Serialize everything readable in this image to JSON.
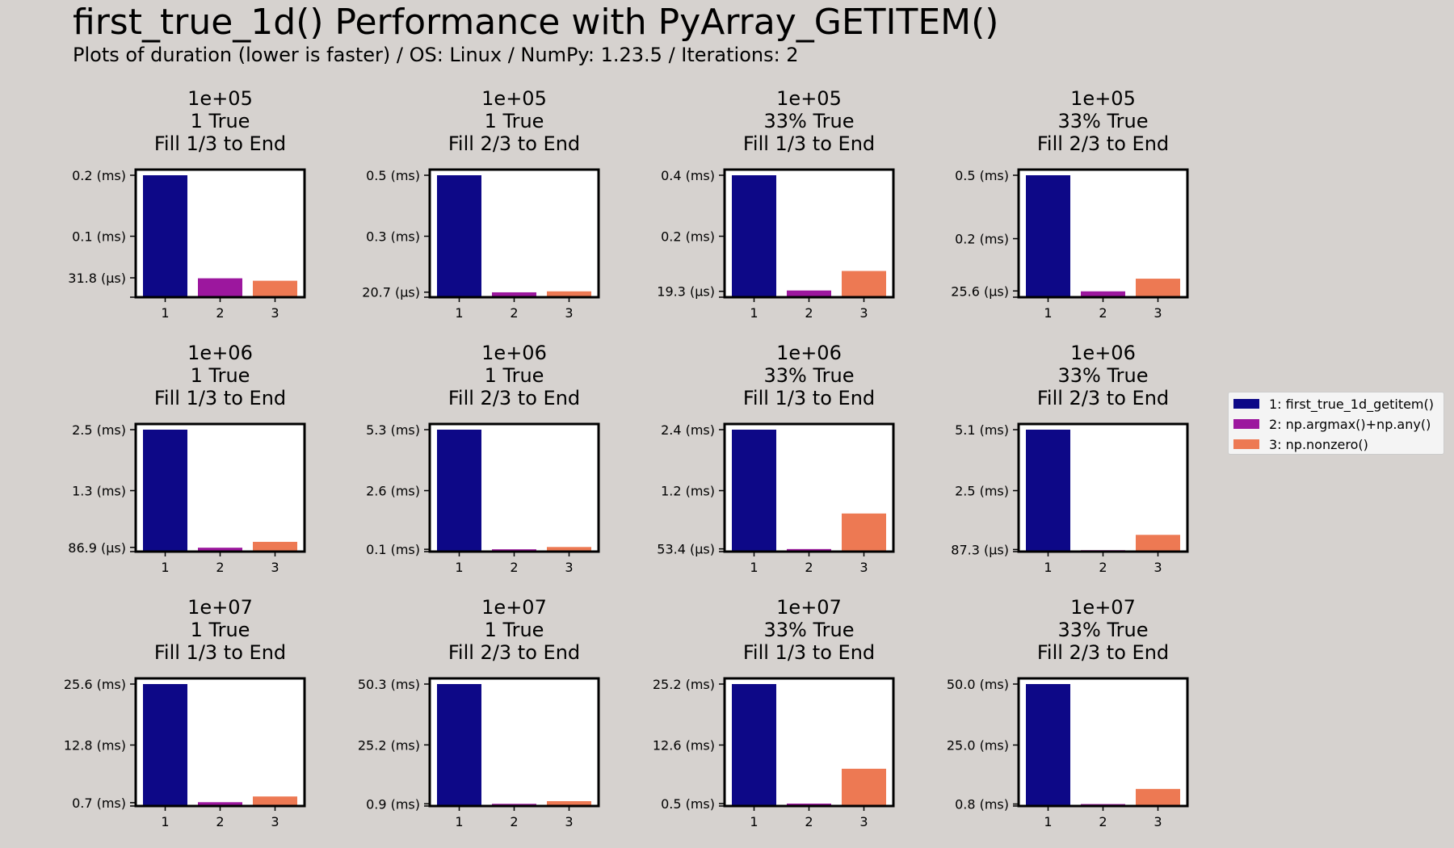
{
  "title": "first_true_1d() Performance with PyArray_GETITEM()",
  "subtitle": "Plots of duration (lower is faster) / OS: Linux / NumPy: 1.23.5 / Iterations: 2",
  "legend": {
    "placement": "right",
    "items": [
      {
        "label": "1: first_true_1d_getitem()",
        "color": "#0d0887"
      },
      {
        "label": "2: np.argmax()+np.any()",
        "color": "#9c179e"
      },
      {
        "label": "3: np.nonzero()",
        "color": "#ed7953"
      }
    ]
  },
  "chart_data": [
    {
      "type": "bar",
      "title": [
        "1e+05",
        "1 True",
        "Fill 1/3 to End"
      ],
      "categories": [
        "1",
        "2",
        "3"
      ],
      "values": [
        0.2,
        0.031,
        0.027
      ],
      "unit": "ms",
      "ylim": [
        0,
        0.2
      ],
      "yticks": [
        {
          "value": 0.2,
          "label": "0.2 (ms)"
        },
        {
          "value": 0.1,
          "label": "0.1 (ms)"
        },
        {
          "value": 0.0318,
          "label": "31.8 (µs)"
        }
      ],
      "grid": false
    },
    {
      "type": "bar",
      "title": [
        "1e+05",
        "1 True",
        "Fill 2/3 to End"
      ],
      "categories": [
        "1",
        "2",
        "3"
      ],
      "values": [
        0.5,
        0.02,
        0.024
      ],
      "unit": "ms",
      "ylim": [
        0,
        0.5
      ],
      "yticks": [
        {
          "value": 0.5,
          "label": "0.5 (ms)"
        },
        {
          "value": 0.25,
          "label": "0.3 (ms)"
        },
        {
          "value": 0.0207,
          "label": "20.7 (µs)"
        }
      ],
      "grid": false
    },
    {
      "type": "bar",
      "title": [
        "1e+05",
        "33% True",
        "Fill 1/3 to End"
      ],
      "categories": [
        "1",
        "2",
        "3"
      ],
      "values": [
        0.4,
        0.022,
        0.086
      ],
      "unit": "ms",
      "ylim": [
        0,
        0.4
      ],
      "yticks": [
        {
          "value": 0.4,
          "label": "0.4 (ms)"
        },
        {
          "value": 0.2,
          "label": "0.2 (ms)"
        },
        {
          "value": 0.0193,
          "label": "19.3 (µs)"
        }
      ],
      "grid": false
    },
    {
      "type": "bar",
      "title": [
        "1e+05",
        "33% True",
        "Fill 2/3 to End"
      ],
      "categories": [
        "1",
        "2",
        "3"
      ],
      "values": [
        0.5,
        0.024,
        0.076
      ],
      "unit": "ms",
      "ylim": [
        0,
        0.5
      ],
      "yticks": [
        {
          "value": 0.5,
          "label": "0.5 (ms)"
        },
        {
          "value": 0.24,
          "label": "0.2 (ms)"
        },
        {
          "value": 0.0256,
          "label": "25.6 (µs)"
        }
      ],
      "grid": false
    },
    {
      "type": "bar",
      "title": [
        "1e+06",
        "1 True",
        "Fill 1/3 to End"
      ],
      "categories": [
        "1",
        "2",
        "3"
      ],
      "values": [
        2.5,
        0.08,
        0.2
      ],
      "unit": "ms",
      "ylim": [
        0,
        2.5
      ],
      "yticks": [
        {
          "value": 2.5,
          "label": "2.5 (ms)"
        },
        {
          "value": 1.25,
          "label": "1.3 (ms)"
        },
        {
          "value": 0.0869,
          "label": "86.9 (µs)"
        }
      ],
      "grid": false
    },
    {
      "type": "bar",
      "title": [
        "1e+06",
        "1 True",
        "Fill 2/3 to End"
      ],
      "categories": [
        "1",
        "2",
        "3"
      ],
      "values": [
        5.3,
        0.1,
        0.2
      ],
      "unit": "ms",
      "ylim": [
        0,
        5.3
      ],
      "yticks": [
        {
          "value": 5.3,
          "label": "5.3 (ms)"
        },
        {
          "value": 2.65,
          "label": "2.6 (ms)"
        },
        {
          "value": 0.1,
          "label": "0.1 (ms)"
        }
      ],
      "grid": false
    },
    {
      "type": "bar",
      "title": [
        "1e+06",
        "33% True",
        "Fill 1/3 to End"
      ],
      "categories": [
        "1",
        "2",
        "3"
      ],
      "values": [
        2.4,
        0.05,
        0.75
      ],
      "unit": "ms",
      "ylim": [
        0,
        2.4
      ],
      "yticks": [
        {
          "value": 2.4,
          "label": "2.4 (ms)"
        },
        {
          "value": 1.2,
          "label": "1.2 (ms)"
        },
        {
          "value": 0.0534,
          "label": "53.4 (µs)"
        }
      ],
      "grid": false
    },
    {
      "type": "bar",
      "title": [
        "1e+06",
        "33% True",
        "Fill 2/3 to End"
      ],
      "categories": [
        "1",
        "2",
        "3"
      ],
      "values": [
        5.1,
        0.06,
        0.7
      ],
      "unit": "ms",
      "ylim": [
        0,
        5.1
      ],
      "yticks": [
        {
          "value": 5.1,
          "label": "5.1 (ms)"
        },
        {
          "value": 2.55,
          "label": "2.5 (ms)"
        },
        {
          "value": 0.0873,
          "label": "87.3 (µs)"
        }
      ],
      "grid": false
    },
    {
      "type": "bar",
      "title": [
        "1e+07",
        "1 True",
        "Fill 1/3 to End"
      ],
      "categories": [
        "1",
        "2",
        "3"
      ],
      "values": [
        25.6,
        0.8,
        2.0
      ],
      "unit": "ms",
      "ylim": [
        0,
        25.6
      ],
      "yticks": [
        {
          "value": 25.6,
          "label": "25.6 (ms)"
        },
        {
          "value": 12.8,
          "label": "12.8 (ms)"
        },
        {
          "value": 0.7,
          "label": "0.7 (ms)"
        }
      ],
      "grid": false
    },
    {
      "type": "bar",
      "title": [
        "1e+07",
        "1 True",
        "Fill 2/3 to End"
      ],
      "categories": [
        "1",
        "2",
        "3"
      ],
      "values": [
        50.3,
        0.9,
        2.0
      ],
      "unit": "ms",
      "ylim": [
        0,
        50.3
      ],
      "yticks": [
        {
          "value": 50.3,
          "label": "50.3 (ms)"
        },
        {
          "value": 25.2,
          "label": "25.2 (ms)"
        },
        {
          "value": 0.9,
          "label": "0.9 (ms)"
        }
      ],
      "grid": false
    },
    {
      "type": "bar",
      "title": [
        "1e+07",
        "33% True",
        "Fill 1/3 to End"
      ],
      "categories": [
        "1",
        "2",
        "3"
      ],
      "values": [
        25.2,
        0.5,
        7.7
      ],
      "unit": "ms",
      "ylim": [
        0,
        25.2
      ],
      "yticks": [
        {
          "value": 25.2,
          "label": "25.2 (ms)"
        },
        {
          "value": 12.6,
          "label": "12.6 (ms)"
        },
        {
          "value": 0.5,
          "label": "0.5 (ms)"
        }
      ],
      "grid": false
    },
    {
      "type": "bar",
      "title": [
        "1e+07",
        "33% True",
        "Fill 2/3 to End"
      ],
      "categories": [
        "1",
        "2",
        "3"
      ],
      "values": [
        50.0,
        0.8,
        7.0
      ],
      "unit": "ms",
      "ylim": [
        0,
        50.0
      ],
      "yticks": [
        {
          "value": 50.0,
          "label": "50.0 (ms)"
        },
        {
          "value": 25.0,
          "label": "25.0 (ms)"
        },
        {
          "value": 0.8,
          "label": "0.8 (ms)"
        }
      ],
      "grid": false
    }
  ]
}
